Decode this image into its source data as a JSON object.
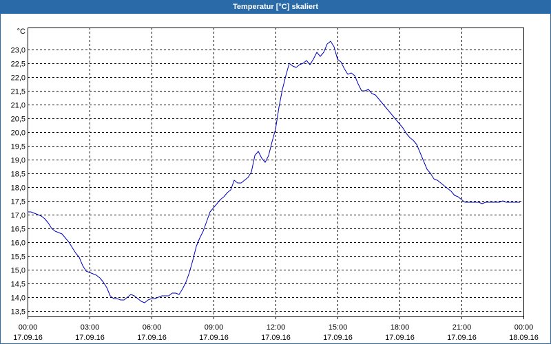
{
  "theme": {
    "title_bar_color": "#2a6aa8"
  },
  "chart_data": {
    "type": "line",
    "title": "Temperatur [°C] skaliert",
    "ylabel": "°C",
    "xlim": [
      "17.09.16 00:00",
      "18.09.16 00:00"
    ],
    "ylim": [
      13.3,
      23.8
    ],
    "grid": true,
    "legend": "none",
    "xaxis": {
      "ticks": [
        {
          "time": "00:00",
          "date": "17.09.16"
        },
        {
          "time": "03:00",
          "date": "17.09.16"
        },
        {
          "time": "06:00",
          "date": "17.09.16"
        },
        {
          "time": "09:00",
          "date": "17.09.16"
        },
        {
          "time": "12:00",
          "date": "17.09.16"
        },
        {
          "time": "15:00",
          "date": "17.09.16"
        },
        {
          "time": "18:00",
          "date": "17.09.16"
        },
        {
          "time": "21:00",
          "date": "17.09.16"
        },
        {
          "time": "00:00",
          "date": "18.09.16"
        }
      ]
    },
    "yaxis": {
      "ticks": [
        {
          "value": 23.0,
          "label": "23,0"
        },
        {
          "value": 22.5,
          "label": "22,5"
        },
        {
          "value": 22.0,
          "label": "22,0"
        },
        {
          "value": 21.5,
          "label": "21,5"
        },
        {
          "value": 21.0,
          "label": "21,0"
        },
        {
          "value": 20.5,
          "label": "20,5"
        },
        {
          "value": 20.0,
          "label": "20,0"
        },
        {
          "value": 19.5,
          "label": "19,5"
        },
        {
          "value": 19.0,
          "label": "19,0"
        },
        {
          "value": 18.5,
          "label": "18,5"
        },
        {
          "value": 18.0,
          "label": "18,0"
        },
        {
          "value": 17.5,
          "label": "17,5"
        },
        {
          "value": 17.0,
          "label": "17,0"
        },
        {
          "value": 16.5,
          "label": "16,5"
        },
        {
          "value": 16.0,
          "label": "16,0"
        },
        {
          "value": 15.5,
          "label": "15,5"
        },
        {
          "value": 15.0,
          "label": "15,0"
        },
        {
          "value": 14.5,
          "label": "14,5"
        },
        {
          "value": 14.0,
          "label": "14,0"
        },
        {
          "value": 13.5,
          "label": "13,5"
        }
      ]
    },
    "series": [
      {
        "color": "#0000c0",
        "x": [
          "17.09.16 00:00",
          "17.09.16 00:10",
          "17.09.16 00:20",
          "17.09.16 00:30",
          "17.09.16 00:40",
          "17.09.16 00:50",
          "17.09.16 01:00",
          "17.09.16 01:10",
          "17.09.16 01:20",
          "17.09.16 01:30",
          "17.09.16 01:40",
          "17.09.16 01:50",
          "17.09.16 02:00",
          "17.09.16 02:10",
          "17.09.16 02:20",
          "17.09.16 02:30",
          "17.09.16 02:40",
          "17.09.16 02:50",
          "17.09.16 03:00",
          "17.09.16 03:10",
          "17.09.16 03:20",
          "17.09.16 03:30",
          "17.09.16 03:40",
          "17.09.16 03:50",
          "17.09.16 04:00",
          "17.09.16 04:10",
          "17.09.16 04:20",
          "17.09.16 04:30",
          "17.09.16 04:40",
          "17.09.16 04:50",
          "17.09.16 05:00",
          "17.09.16 05:10",
          "17.09.16 05:20",
          "17.09.16 05:30",
          "17.09.16 05:40",
          "17.09.16 05:50",
          "17.09.16 06:00",
          "17.09.16 06:10",
          "17.09.16 06:20",
          "17.09.16 06:30",
          "17.09.16 06:40",
          "17.09.16 06:50",
          "17.09.16 07:00",
          "17.09.16 07:10",
          "17.09.16 07:20",
          "17.09.16 07:30",
          "17.09.16 07:40",
          "17.09.16 07:50",
          "17.09.16 08:00",
          "17.09.16 08:10",
          "17.09.16 08:20",
          "17.09.16 08:30",
          "17.09.16 08:40",
          "17.09.16 08:50",
          "17.09.16 09:00",
          "17.09.16 09:10",
          "17.09.16 09:20",
          "17.09.16 09:30",
          "17.09.16 09:40",
          "17.09.16 09:50",
          "17.09.16 10:00",
          "17.09.16 10:10",
          "17.09.16 10:20",
          "17.09.16 10:30",
          "17.09.16 10:40",
          "17.09.16 10:50",
          "17.09.16 11:00",
          "17.09.16 11:10",
          "17.09.16 11:20",
          "17.09.16 11:30",
          "17.09.16 11:40",
          "17.09.16 11:50",
          "17.09.16 12:00",
          "17.09.16 12:10",
          "17.09.16 12:20",
          "17.09.16 12:30",
          "17.09.16 12:40",
          "17.09.16 12:50",
          "17.09.16 13:00",
          "17.09.16 13:10",
          "17.09.16 13:20",
          "17.09.16 13:30",
          "17.09.16 13:40",
          "17.09.16 13:50",
          "17.09.16 14:00",
          "17.09.16 14:10",
          "17.09.16 14:20",
          "17.09.16 14:30",
          "17.09.16 14:40",
          "17.09.16 14:50",
          "17.09.16 15:00",
          "17.09.16 15:10",
          "17.09.16 15:20",
          "17.09.16 15:30",
          "17.09.16 15:40",
          "17.09.16 15:50",
          "17.09.16 16:00",
          "17.09.16 16:10",
          "17.09.16 16:20",
          "17.09.16 16:30",
          "17.09.16 16:40",
          "17.09.16 16:50",
          "17.09.16 17:00",
          "17.09.16 17:10",
          "17.09.16 17:20",
          "17.09.16 17:30",
          "17.09.16 17:40",
          "17.09.16 17:50",
          "17.09.16 18:00",
          "17.09.16 18:10",
          "17.09.16 18:20",
          "17.09.16 18:30",
          "17.09.16 18:40",
          "17.09.16 18:50",
          "17.09.16 19:00",
          "17.09.16 19:10",
          "17.09.16 19:20",
          "17.09.16 19:30",
          "17.09.16 19:40",
          "17.09.16 19:50",
          "17.09.16 20:00",
          "17.09.16 20:10",
          "17.09.16 20:20",
          "17.09.16 20:30",
          "17.09.16 20:40",
          "17.09.16 20:50",
          "17.09.16 21:00",
          "17.09.16 21:10",
          "17.09.16 21:20",
          "17.09.16 21:30",
          "17.09.16 21:40",
          "17.09.16 21:50",
          "17.09.16 22:00",
          "17.09.16 22:10",
          "17.09.16 22:20",
          "17.09.16 22:30",
          "17.09.16 22:40",
          "17.09.16 22:50",
          "17.09.16 23:00",
          "17.09.16 23:10",
          "17.09.16 23:20",
          "17.09.16 23:30",
          "17.09.16 23:40",
          "17.09.16 23:50"
        ],
        "y": [
          17.1,
          17.1,
          17.05,
          17.0,
          16.95,
          16.85,
          16.7,
          16.5,
          16.4,
          16.35,
          16.3,
          16.15,
          16.0,
          15.8,
          15.6,
          15.45,
          15.15,
          14.95,
          14.9,
          14.85,
          14.8,
          14.7,
          14.55,
          14.35,
          14.05,
          13.95,
          13.95,
          13.9,
          13.9,
          14.0,
          14.1,
          14.05,
          13.95,
          13.85,
          13.8,
          13.9,
          13.95,
          13.95,
          14.0,
          14.05,
          14.05,
          14.05,
          14.15,
          14.15,
          14.1,
          14.3,
          14.55,
          14.9,
          15.35,
          15.85,
          16.15,
          16.4,
          16.75,
          17.1,
          17.25,
          17.4,
          17.55,
          17.65,
          17.8,
          17.9,
          18.25,
          18.15,
          18.15,
          18.25,
          18.35,
          18.55,
          19.15,
          19.3,
          19.05,
          18.9,
          19.15,
          19.65,
          20.1,
          20.9,
          21.55,
          22.05,
          22.5,
          22.4,
          22.35,
          22.45,
          22.5,
          22.6,
          22.45,
          22.65,
          22.9,
          22.75,
          22.9,
          23.2,
          23.3,
          23.1,
          22.65,
          22.55,
          22.3,
          22.1,
          22.15,
          22.05,
          21.75,
          21.5,
          21.5,
          21.55,
          21.4,
          21.35,
          21.2,
          21.05,
          20.9,
          20.75,
          20.6,
          20.45,
          20.3,
          20.15,
          19.95,
          19.8,
          19.7,
          19.55,
          19.25,
          18.95,
          18.65,
          18.5,
          18.3,
          18.25,
          18.15,
          18.05,
          17.95,
          17.85,
          17.7,
          17.65,
          17.55,
          17.45,
          17.45,
          17.45,
          17.45,
          17.45,
          17.4,
          17.45,
          17.45,
          17.45,
          17.45,
          17.45,
          17.5,
          17.45,
          17.45,
          17.45,
          17.45,
          17.45
        ]
      }
    ]
  }
}
